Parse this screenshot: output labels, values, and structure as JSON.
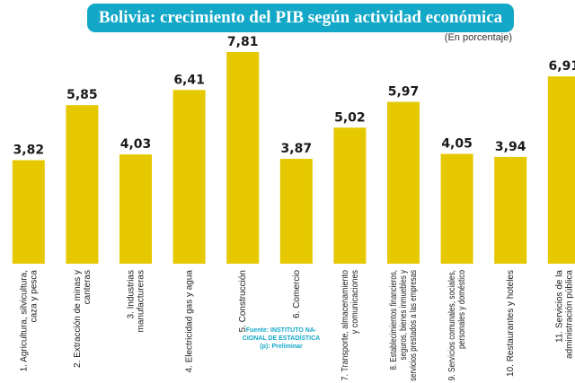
{
  "header": {
    "title": "Bolivia: crecimiento del PIB según actividad económica",
    "subtitle": "(En porcentaje)"
  },
  "source": {
    "line1": "Fuente: INSTITUTO NA-",
    "line2": "CIONAL DE ESTADÍSTICA",
    "line3": "(p): Preliminar"
  },
  "colors": {
    "bar": "#e6c800",
    "banner": "#13a8c7",
    "source_text": "#13a8c7"
  },
  "chart_data": {
    "type": "bar",
    "title": "Bolivia: crecimiento del PIB según actividad económica",
    "subtitle": "(En porcentaje)",
    "categories": [
      [
        "1. Agricultura, silvicultura,",
        "caza y pesca"
      ],
      [
        "2. Extracción de minas y",
        "canteras"
      ],
      [
        "3. Industrias",
        "manufactureras"
      ],
      [
        "4. Electricidad gas y agua"
      ],
      [
        "5. Construcción"
      ],
      [
        "6. Comercio"
      ],
      [
        "7. Transporte, almacenamiento",
        "y comunicaciones"
      ],
      [
        "8. Establecimientos financieros,",
        "seguros, bienes inmuebles y",
        "servicios prestados a las empresas"
      ],
      [
        "9. Servicios comunales, sociales,",
        "personales y doméstico"
      ],
      [
        "10. Restaurantes y hoteles"
      ],
      [
        "11. Servicios de la",
        "administración pública"
      ]
    ],
    "values": [
      3.82,
      5.85,
      4.03,
      6.41,
      7.81,
      3.87,
      5.02,
      5.97,
      4.05,
      3.94,
      6.91
    ],
    "value_labels": [
      "3,82",
      "5,85",
      "4,03",
      "6,41",
      "7,81",
      "3,87",
      "5,02",
      "5,97",
      "4,05",
      "3,94",
      "6,91"
    ],
    "ylim": [
      0,
      7.81
    ],
    "grid": false,
    "legend": "none"
  }
}
